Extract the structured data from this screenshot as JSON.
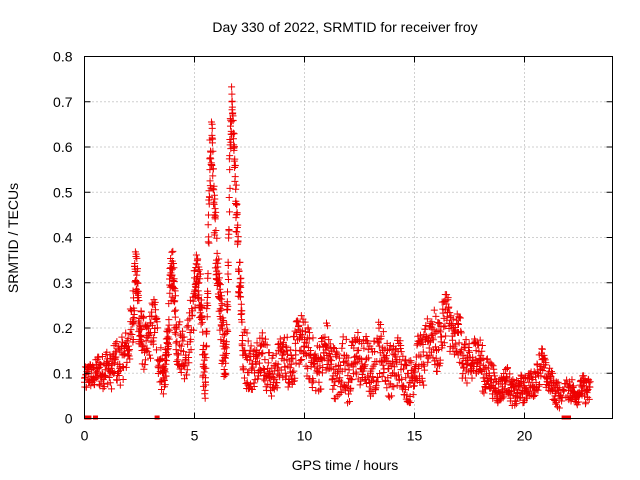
{
  "chart_data": {
    "type": "scatter",
    "title": "Day 330 of 2022, SRMTID for receiver froy",
    "xlabel": "GPS time / hours",
    "ylabel": "SRMTID / TECUs",
    "xlim": [
      0,
      24
    ],
    "ylim": [
      0,
      0.8
    ],
    "x_ticks": [
      "0",
      "5",
      "10",
      "15",
      "20"
    ],
    "y_ticks": [
      "0",
      "0.1",
      "0.2",
      "0.3",
      "0.4",
      "0.5",
      "0.6",
      "0.7",
      "0.8"
    ],
    "grid": true,
    "marker": "+",
    "color": "#ee0000",
    "series": [
      {
        "name": "SRMTID",
        "x": [
          0.0,
          0.2,
          0.4,
          0.6,
          0.8,
          1.0,
          1.2,
          1.4,
          1.6,
          1.8,
          2.0,
          2.2,
          2.3,
          2.4,
          2.5,
          2.6,
          2.8,
          3.0,
          3.2,
          3.4,
          3.6,
          3.7,
          3.8,
          3.9,
          4.0,
          4.1,
          4.2,
          4.4,
          4.6,
          4.8,
          5.0,
          5.1,
          5.2,
          5.3,
          5.4,
          5.5,
          5.6,
          5.7,
          5.8,
          5.9,
          6.0,
          6.1,
          6.2,
          6.3,
          6.4,
          6.5,
          6.6,
          6.7,
          6.8,
          6.9,
          7.0,
          7.1,
          7.2,
          7.4,
          7.6,
          7.8,
          8.0,
          8.2,
          8.4,
          8.6,
          8.8,
          9.0,
          9.2,
          9.4,
          9.6,
          9.8,
          10.0,
          10.2,
          10.4,
          10.6,
          10.8,
          11.0,
          11.2,
          11.4,
          11.6,
          11.8,
          12.0,
          12.2,
          12.4,
          12.6,
          12.8,
          13.0,
          13.2,
          13.4,
          13.6,
          13.8,
          14.0,
          14.2,
          14.4,
          14.6,
          14.8,
          15.0,
          15.2,
          15.4,
          15.6,
          15.8,
          16.0,
          16.2,
          16.4,
          16.6,
          16.8,
          17.0,
          17.2,
          17.4,
          17.6,
          17.8,
          18.0,
          18.2,
          18.4,
          18.6,
          18.8,
          19.0,
          19.2,
          19.4,
          19.6,
          19.8,
          20.0,
          20.2,
          20.4,
          20.6,
          20.8,
          21.0,
          21.2,
          21.4,
          21.6,
          22.0,
          22.2,
          22.4,
          22.6,
          22.8
        ],
        "y": [
          0.08,
          0.1,
          0.09,
          0.11,
          0.1,
          0.12,
          0.1,
          0.13,
          0.12,
          0.14,
          0.16,
          0.22,
          0.33,
          0.3,
          0.2,
          0.18,
          0.15,
          0.19,
          0.22,
          0.13,
          0.09,
          0.12,
          0.18,
          0.29,
          0.33,
          0.26,
          0.17,
          0.16,
          0.14,
          0.19,
          0.28,
          0.31,
          0.3,
          0.25,
          0.12,
          0.09,
          0.31,
          0.55,
          0.62,
          0.45,
          0.35,
          0.3,
          0.22,
          0.16,
          0.1,
          0.24,
          0.55,
          0.7,
          0.6,
          0.45,
          0.33,
          0.3,
          0.14,
          0.13,
          0.11,
          0.12,
          0.16,
          0.13,
          0.1,
          0.09,
          0.12,
          0.14,
          0.13,
          0.12,
          0.15,
          0.18,
          0.16,
          0.14,
          0.12,
          0.11,
          0.13,
          0.16,
          0.12,
          0.1,
          0.09,
          0.14,
          0.08,
          0.12,
          0.15,
          0.11,
          0.13,
          0.1,
          0.12,
          0.16,
          0.14,
          0.11,
          0.1,
          0.13,
          0.12,
          0.09,
          0.08,
          0.11,
          0.14,
          0.12,
          0.17,
          0.2,
          0.15,
          0.18,
          0.24,
          0.21,
          0.16,
          0.19,
          0.14,
          0.12,
          0.11,
          0.15,
          0.13,
          0.09,
          0.1,
          0.08,
          0.06,
          0.07,
          0.09,
          0.06,
          0.05,
          0.07,
          0.06,
          0.08,
          0.07,
          0.1,
          0.13,
          0.09,
          0.08,
          0.06,
          0.05,
          0.07,
          0.06,
          0.05,
          0.07,
          0.06
        ],
        "spread": [
          0.03,
          0.03,
          0.03,
          0.04,
          0.04,
          0.04,
          0.04,
          0.05,
          0.05,
          0.05,
          0.06,
          0.07,
          0.05,
          0.06,
          0.06,
          0.06,
          0.05,
          0.06,
          0.06,
          0.05,
          0.04,
          0.05,
          0.06,
          0.06,
          0.05,
          0.06,
          0.06,
          0.06,
          0.06,
          0.07,
          0.06,
          0.05,
          0.06,
          0.07,
          0.05,
          0.04,
          0.07,
          0.08,
          0.05,
          0.07,
          0.07,
          0.06,
          0.07,
          0.07,
          0.05,
          0.08,
          0.08,
          0.02,
          0.05,
          0.07,
          0.05,
          0.05,
          0.07,
          0.06,
          0.05,
          0.05,
          0.06,
          0.06,
          0.05,
          0.05,
          0.05,
          0.05,
          0.06,
          0.06,
          0.06,
          0.06,
          0.06,
          0.06,
          0.06,
          0.06,
          0.06,
          0.06,
          0.06,
          0.06,
          0.06,
          0.07,
          0.06,
          0.06,
          0.06,
          0.06,
          0.06,
          0.06,
          0.07,
          0.06,
          0.06,
          0.06,
          0.06,
          0.06,
          0.05,
          0.05,
          0.05,
          0.05,
          0.06,
          0.06,
          0.06,
          0.07,
          0.06,
          0.06,
          0.06,
          0.06,
          0.05,
          0.06,
          0.05,
          0.05,
          0.05,
          0.05,
          0.05,
          0.04,
          0.04,
          0.03,
          0.03,
          0.03,
          0.03,
          0.03,
          0.03,
          0.03,
          0.03,
          0.03,
          0.03,
          0.04,
          0.03,
          0.03,
          0.03,
          0.03,
          0.02,
          0.03,
          0.02,
          0.02,
          0.03,
          0.03
        ],
        "zero_points": [
          0.1,
          0.2,
          0.5,
          3.3,
          21.8,
          22.0
        ]
      }
    ]
  }
}
